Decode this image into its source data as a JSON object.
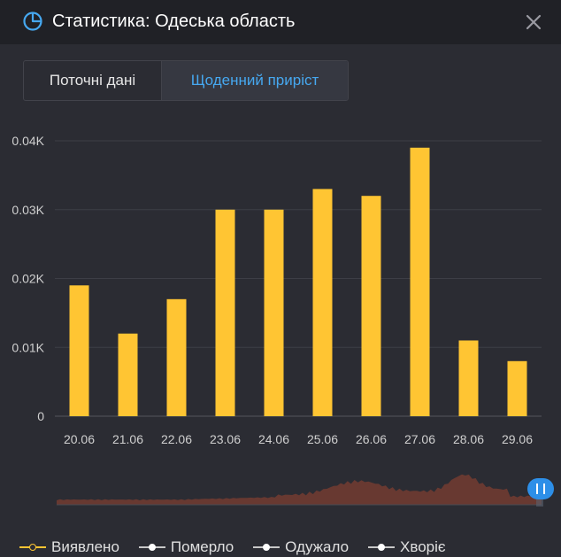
{
  "header": {
    "title": "Статистика: Одеська область",
    "icon": "pie-chart-icon",
    "close_icon": "close-icon",
    "icon_color": "#46a8f0"
  },
  "tabs": [
    {
      "label": "Поточні дані",
      "active": false
    },
    {
      "label": "Щоденний приріст",
      "active": true
    }
  ],
  "chart_data": {
    "type": "bar",
    "categories": [
      "20.06",
      "21.06",
      "22.06",
      "23.06",
      "24.06",
      "25.06",
      "26.06",
      "27.06",
      "28.06",
      "29.06"
    ],
    "values": [
      0.019,
      0.012,
      0.017,
      0.03,
      0.03,
      0.033,
      0.032,
      0.039,
      0.011,
      0.008
    ],
    "ylim": [
      0,
      0.04
    ],
    "yticks": [
      {
        "value": 0,
        "label": "0"
      },
      {
        "value": 0.01,
        "label": "0.01K"
      },
      {
        "value": 0.02,
        "label": "0.02K"
      },
      {
        "value": 0.03,
        "label": "0.03K"
      },
      {
        "value": 0.04,
        "label": "0.04K"
      }
    ],
    "grid": true,
    "bar_color": "#ffc533",
    "minimap_color": "#6b3a32",
    "minimap_handle_color": "#2d8fe8"
  },
  "legend": [
    {
      "label": "Виявлено",
      "color": "#ffc533",
      "active": true
    },
    {
      "label": "Померло",
      "color": "#c8c8c8",
      "active": false
    },
    {
      "label": "Одужало",
      "color": "#c8c8c8",
      "active": false
    },
    {
      "label": "Хворіє",
      "color": "#c8c8c8",
      "active": false
    }
  ]
}
